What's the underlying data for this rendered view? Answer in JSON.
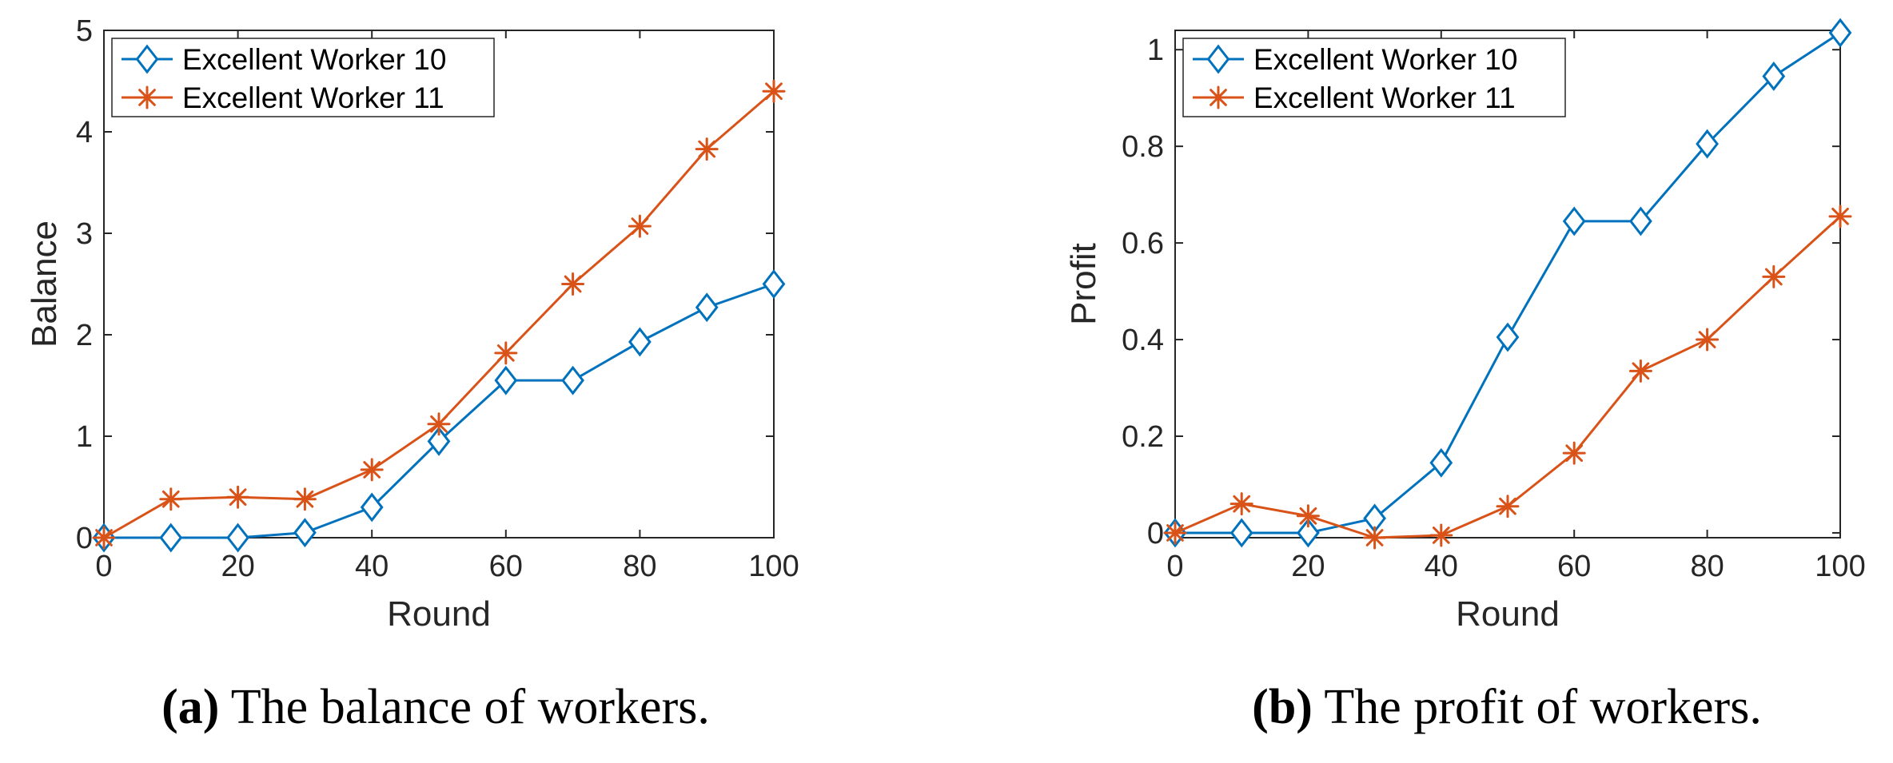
{
  "colors": {
    "series_1": "#0072BD",
    "series_2": "#D95319",
    "axis": "#262626",
    "grid": "#e6e6e6"
  },
  "chart_data": [
    {
      "type": "line",
      "xlabel": "Round",
      "ylabel": "Balance",
      "xlim": [
        0,
        100
      ],
      "ylim": [
        0,
        5
      ],
      "xticks": [
        0,
        20,
        40,
        60,
        80,
        100
      ],
      "yticks": [
        0,
        1,
        2,
        3,
        4,
        5
      ],
      "ytick_labels": [
        "0",
        "1",
        "2",
        "3",
        "4",
        "5"
      ],
      "x": [
        0,
        10,
        20,
        30,
        40,
        50,
        60,
        70,
        80,
        90,
        100
      ],
      "legend_position": "top-left",
      "series": [
        {
          "name": "Excellent Worker 10",
          "marker": "diamond",
          "values": [
            0,
            0,
            0,
            0.05,
            0.3,
            0.95,
            1.55,
            1.55,
            1.93,
            2.27,
            2.5
          ]
        },
        {
          "name": "Excellent Worker 11",
          "marker": "asterisk",
          "values": [
            0,
            0.38,
            0.4,
            0.38,
            0.67,
            1.12,
            1.82,
            2.5,
            3.07,
            3.83,
            4.4
          ]
        }
      ],
      "caption_letter": "(a)",
      "caption_text": " The balance of workers."
    },
    {
      "type": "line",
      "xlabel": "Round",
      "ylabel": "Profit",
      "xlim": [
        0,
        100
      ],
      "ylim": [
        -0.01,
        1.04
      ],
      "xticks": [
        0,
        20,
        40,
        60,
        80,
        100
      ],
      "yticks": [
        0,
        0.2,
        0.4,
        0.6,
        0.8,
        1
      ],
      "ytick_labels": [
        "0",
        "0.2",
        "0.4",
        "0.6",
        "0.8",
        "1"
      ],
      "x": [
        0,
        10,
        20,
        30,
        40,
        50,
        60,
        70,
        80,
        90,
        100
      ],
      "legend_position": "top-left",
      "series": [
        {
          "name": "Excellent Worker 10",
          "marker": "diamond",
          "values": [
            0,
            0,
            0,
            0.03,
            0.145,
            0.405,
            0.645,
            0.645,
            0.805,
            0.945,
            1.035
          ]
        },
        {
          "name": "Excellent Worker 11",
          "marker": "asterisk",
          "values": [
            0,
            0.06,
            0.035,
            -0.01,
            -0.005,
            0.055,
            0.165,
            0.335,
            0.4,
            0.53,
            0.655
          ]
        }
      ],
      "caption_letter": "(b)",
      "caption_text": " The profit of workers."
    }
  ]
}
